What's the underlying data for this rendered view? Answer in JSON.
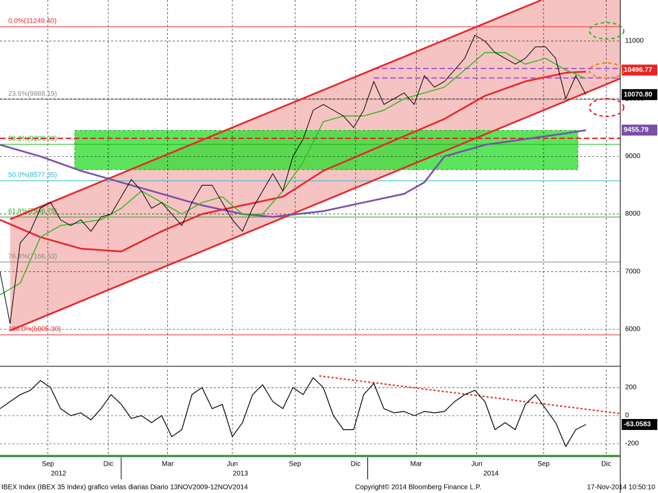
{
  "chart_data": [
    {
      "type": "line",
      "xlim": [
        0,
        30.7
      ],
      "ylim": [
        5418,
        11712
      ],
      "yticks": [
        6000,
        7000,
        8000,
        9000,
        10000,
        11000
      ],
      "grid": true,
      "channel": {
        "color": "#e8262a",
        "fill": "#f6c3c3",
        "upper": {
          "x": [
            0.5,
            26.8
          ],
          "values": [
            7910,
            11712
          ]
        },
        "lower": {
          "x": [
            0.5,
            30.7
          ],
          "values": [
            5980,
            10350
          ]
        }
      },
      "zone": {
        "x": [
          3.7,
          28.6
        ],
        "values": [
          8770,
          9450
        ],
        "color": "#33dd33"
      },
      "fib_levels": [
        {
          "value": 11249.4,
          "label": "0.0%(11249.40)",
          "color": "#e8262a"
        },
        {
          "value": 9988.19,
          "label": "23.6%(9988.19)",
          "color": "#888888"
        },
        {
          "value": 9208.03,
          "label": "38.2%(9208.03)",
          "color": "#22aa22"
        },
        {
          "value": 8577.35,
          "label": "50.0%(8577.35)",
          "color": "#22bbcc"
        },
        {
          "value": 7946.75,
          "label": "61.8%(7946.75)",
          "color": "#22aa22"
        },
        {
          "value": 7166.53,
          "label": "76.4%(7166.53)",
          "color": "#888888"
        },
        {
          "value": 5905.3,
          "label": "100.0%(5905.30)",
          "color": "#e8262a"
        }
      ],
      "levels": [
        {
          "x": [
            18.5,
            30.7
          ],
          "value": 10525,
          "color": "#b060d0"
        },
        {
          "x": [
            18.5,
            30.7
          ],
          "value": 10359,
          "color": "#b060d0"
        },
        {
          "x": [
            0,
            30.7
          ],
          "value": 9313,
          "color": "#e8262a"
        }
      ],
      "last_labels": [
        {
          "value": 10496.77,
          "label": "10496.77",
          "bg": "#ee2222"
        },
        {
          "value": 10070.8,
          "label": "10070.80",
          "bg": "#000000"
        },
        {
          "value": 9455.79,
          "label": "9455.79",
          "bg": "#7a4fa8"
        }
      ],
      "series": [
        {
          "color": "#e8262a",
          "width": 2.5,
          "x": [
            0,
            2,
            4,
            6,
            8,
            10,
            12,
            14,
            16,
            18,
            20,
            22,
            24,
            26,
            28,
            29
          ],
          "values": [
            7900,
            7600,
            7400,
            7350,
            7700,
            8000,
            8150,
            8300,
            8750,
            9050,
            9350,
            9650,
            10050,
            10300,
            10450,
            10470
          ]
        },
        {
          "color": "#7a4fa8",
          "width": 2.5,
          "x": [
            0,
            2,
            4,
            6,
            8,
            10,
            12,
            13.5,
            16,
            18,
            20,
            21,
            22,
            24,
            26,
            28,
            29
          ],
          "values": [
            9200,
            9000,
            8750,
            8550,
            8350,
            8150,
            8000,
            7950,
            8050,
            8200,
            8350,
            8550,
            9000,
            9200,
            9300,
            9400,
            9455
          ]
        },
        {
          "color": "#33bb22",
          "width": 1.5,
          "x": [
            0,
            1,
            2,
            3,
            4,
            5,
            6,
            7,
            8,
            9,
            10,
            11,
            12,
            13,
            14,
            15,
            16,
            17,
            18,
            19,
            20,
            21,
            22,
            23,
            24,
            25,
            26,
            27,
            28,
            29
          ],
          "values": [
            6600,
            6800,
            7600,
            7800,
            7850,
            7900,
            8100,
            8400,
            8200,
            8000,
            8200,
            8300,
            8000,
            8000,
            8400,
            8900,
            9600,
            9700,
            9700,
            9800,
            10000,
            10100,
            10200,
            10500,
            10800,
            10800,
            10600,
            10700,
            10500,
            10350
          ]
        },
        {
          "color": "#000000",
          "width": 1,
          "x": [
            0,
            0.5,
            1,
            1.5,
            2,
            2.5,
            3,
            3.5,
            4,
            4.5,
            5,
            5.5,
            6,
            6.5,
            7,
            7.5,
            8,
            8.5,
            9,
            9.5,
            10,
            10.5,
            11,
            11.5,
            12,
            12.5,
            13,
            13.5,
            14,
            14.5,
            15,
            15.5,
            16,
            16.5,
            17,
            17.5,
            18,
            18.5,
            19,
            19.5,
            20,
            20.5,
            21,
            21.5,
            22,
            22.5,
            23,
            23.5,
            24,
            24.5,
            25,
            25.5,
            26,
            26.5,
            27,
            27.5,
            28,
            28.5,
            29
          ],
          "values": [
            7000,
            6100,
            7500,
            7700,
            8100,
            8200,
            7900,
            7800,
            7900,
            7700,
            7950,
            8000,
            8300,
            8600,
            8400,
            8100,
            8200,
            8000,
            7800,
            8200,
            8500,
            8500,
            8200,
            7900,
            7700,
            8100,
            8400,
            8700,
            8400,
            9000,
            9300,
            9800,
            9900,
            9800,
            9700,
            9500,
            9800,
            10300,
            9900,
            10000,
            10100,
            9900,
            10400,
            10200,
            10300,
            10500,
            10700,
            11100,
            11000,
            10800,
            10700,
            10600,
            10700,
            10900,
            10900,
            10700,
            10000,
            10400,
            10070
          ]
        }
      ]
    },
    {
      "type": "line",
      "xlim": [
        0,
        30.7
      ],
      "ylim": [
        -283,
        327
      ],
      "yticks": [
        -200,
        0,
        200
      ],
      "grid": true,
      "xticks": [
        {
          "value": 2.37,
          "label": "Sep"
        },
        {
          "value": 5.36,
          "label": "Dic"
        },
        {
          "value": 8.3,
          "label": "Mar"
        },
        {
          "value": 11.5,
          "label": "Jun"
        },
        {
          "value": 14.6,
          "label": "Sep"
        },
        {
          "value": 17.6,
          "label": "Dic"
        },
        {
          "value": 20.6,
          "label": "Mar"
        },
        {
          "value": 23.6,
          "label": "Jun"
        },
        {
          "value": 26.9,
          "label": "Sep"
        },
        {
          "value": 30.0,
          "label": "Dic"
        }
      ],
      "x_groups": [
        {
          "value": 2.9,
          "label": "2012"
        },
        {
          "value": 11.9,
          "label": "2013"
        },
        {
          "value": 24.3,
          "label": "2014"
        }
      ],
      "x_separators": [
        6.0,
        18.2
      ],
      "trend": {
        "x": [
          15.8,
          30.7
        ],
        "values": [
          283,
          15
        ],
        "color": "#e8262a"
      },
      "last_labels": [
        {
          "value": -63.0583,
          "label": "-63.0583",
          "bg": "#000000"
        }
      ],
      "series": [
        {
          "color": "#000000",
          "width": 1.2,
          "x": [
            0,
            0.5,
            1,
            1.5,
            2,
            2.5,
            3,
            3.5,
            4,
            4.5,
            5,
            5.5,
            6,
            6.5,
            7,
            7.5,
            8,
            8.5,
            9,
            9.5,
            10,
            10.5,
            11,
            11.5,
            12,
            12.5,
            13,
            13.5,
            14,
            14.5,
            15,
            15.5,
            16,
            16.5,
            17,
            17.5,
            18,
            18.5,
            19,
            19.5,
            20,
            20.5,
            21,
            21.5,
            22,
            22.5,
            23,
            23.5,
            24,
            24.5,
            25,
            25.5,
            26,
            26.5,
            27,
            27.5,
            28,
            28.5,
            29
          ],
          "values": [
            50,
            100,
            150,
            180,
            250,
            200,
            50,
            0,
            20,
            -30,
            50,
            150,
            80,
            -20,
            0,
            -50,
            0,
            -150,
            -100,
            150,
            200,
            50,
            80,
            -150,
            -50,
            150,
            220,
            100,
            50,
            200,
            150,
            270,
            200,
            0,
            -100,
            -100,
            150,
            230,
            50,
            20,
            30,
            0,
            30,
            20,
            30,
            100,
            150,
            180,
            100,
            -100,
            -50,
            -100,
            80,
            150,
            50,
            -50,
            -220,
            -100,
            -63.0583
          ]
        }
      ]
    }
  ],
  "footer": {
    "left": "IBEX Index (IBEX 35 Index) grafico velas diarias  Diario 13NOV2009-12NOV2014",
    "center": "Copyright© 2014 Bloomberg Finance L.P.",
    "right": "17-Nov-2014 10:50:10"
  }
}
